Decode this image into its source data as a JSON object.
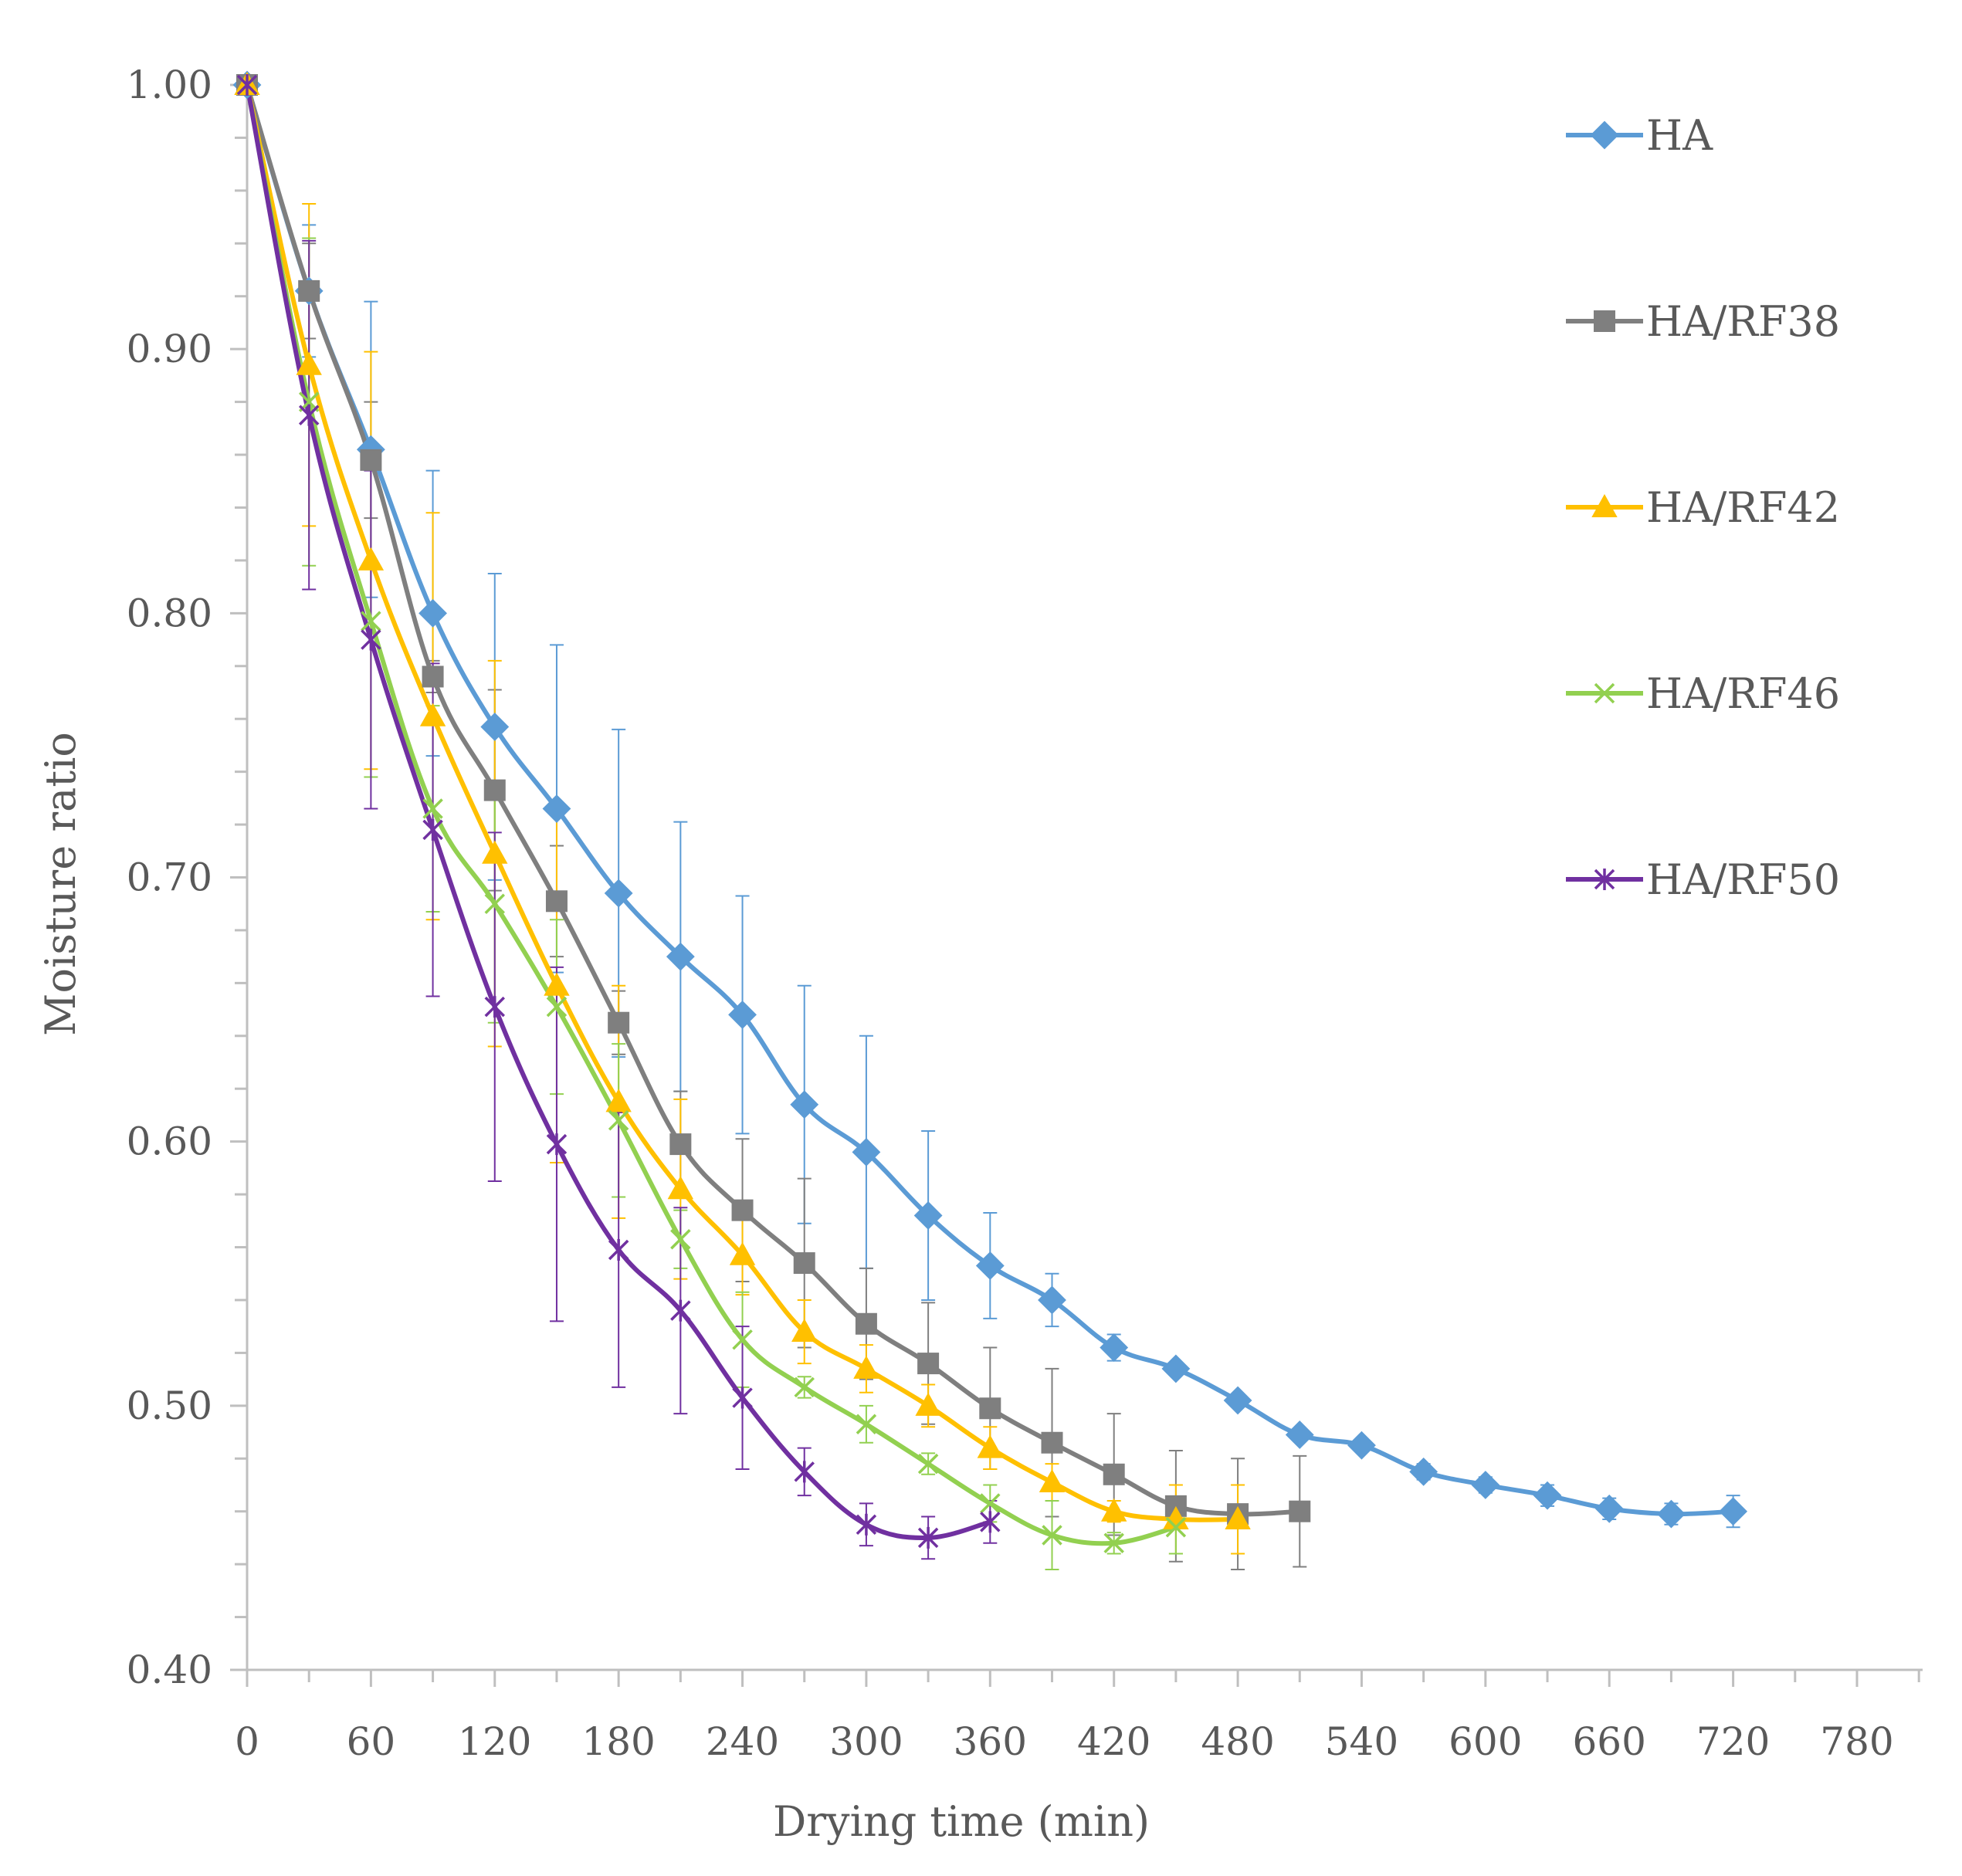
{
  "chart_data": {
    "type": "line",
    "title": "",
    "xlabel": "Drying time (min)",
    "ylabel": "Moisture ratio",
    "xlim": [
      0,
      780
    ],
    "ylim": [
      0.4,
      1.0
    ],
    "x_ticks": [
      0,
      60,
      120,
      180,
      240,
      300,
      360,
      420,
      480,
      540,
      600,
      660,
      720,
      780
    ],
    "x_tick_labels": [
      "0",
      "60",
      "120",
      "180",
      "240",
      "300",
      "360",
      "420",
      "480",
      "540",
      "600",
      "660",
      "720",
      "780"
    ],
    "y_ticks": [
      0.4,
      0.5,
      0.6,
      0.7,
      0.8,
      0.9,
      1.0
    ],
    "y_tick_labels": [
      "0.40",
      "0.50",
      "0.60",
      "0.70",
      "0.80",
      "0.90",
      "1.00"
    ],
    "grid": false,
    "legend_position": "top-right",
    "series": [
      {
        "name": "HA",
        "color": "#5B9BD5",
        "marker": "diamond",
        "x": [
          0,
          30,
          60,
          90,
          120,
          150,
          180,
          210,
          240,
          270,
          300,
          330,
          360,
          390,
          420,
          450,
          480,
          510,
          540,
          570,
          600,
          630,
          660,
          690,
          720
        ],
        "y": [
          1.0,
          0.922,
          0.862,
          0.8,
          0.757,
          0.726,
          0.694,
          0.67,
          0.648,
          0.614,
          0.596,
          0.572,
          0.553,
          0.54,
          0.522,
          0.514,
          0.502,
          0.489,
          0.485,
          0.475,
          0.47,
          0.466,
          0.461,
          0.459,
          0.46
        ],
        "err": [
          0,
          0.025,
          0.056,
          0.054,
          0.058,
          0.062,
          0.062,
          0.051,
          0.045,
          0.045,
          0.044,
          0.032,
          0.02,
          0.01,
          0.005,
          0.002,
          0.002,
          0.002,
          0.002,
          0.003,
          0.003,
          0.004,
          0.004,
          0.004,
          0.006
        ]
      },
      {
        "name": "HA/RF38",
        "color": "#7F7F7F",
        "marker": "square",
        "x": [
          0,
          30,
          60,
          90,
          120,
          150,
          180,
          210,
          240,
          270,
          300,
          330,
          360,
          390,
          420,
          450,
          480,
          510
        ],
        "y": [
          1.0,
          0.922,
          0.858,
          0.776,
          0.733,
          0.691,
          0.645,
          0.599,
          0.574,
          0.554,
          0.531,
          0.516,
          0.499,
          0.486,
          0.474,
          0.462,
          0.459,
          0.46
        ],
        "err": [
          0,
          0.018,
          0.022,
          0.006,
          0.038,
          0.021,
          0.012,
          0.02,
          0.027,
          0.032,
          0.021,
          0.023,
          0.023,
          0.028,
          0.023,
          0.021,
          0.021,
          0.021
        ]
      },
      {
        "name": "HA/RF42",
        "color": "#FFC000",
        "marker": "triangle",
        "x": [
          0,
          30,
          60,
          90,
          120,
          150,
          180,
          210,
          240,
          270,
          300,
          330,
          360,
          390,
          420,
          450,
          480
        ],
        "y": [
          1.0,
          0.894,
          0.82,
          0.761,
          0.709,
          0.659,
          0.615,
          0.582,
          0.557,
          0.528,
          0.514,
          0.5,
          0.484,
          0.471,
          0.46,
          0.457,
          0.457
        ],
        "err": [
          0,
          0.061,
          0.079,
          0.077,
          0.073,
          0.067,
          0.044,
          0.034,
          0.015,
          0.012,
          0.009,
          0.008,
          0.008,
          0.007,
          0.004,
          0.013,
          0.013
        ]
      },
      {
        "name": "HA/RF46",
        "color": "#92D050",
        "marker": "x",
        "x": [
          0,
          30,
          60,
          90,
          120,
          150,
          180,
          210,
          240,
          270,
          300,
          330,
          360,
          390,
          420,
          450
        ],
        "y": [
          1.0,
          0.88,
          0.797,
          0.726,
          0.69,
          0.651,
          0.608,
          0.563,
          0.525,
          0.507,
          0.493,
          0.478,
          0.463,
          0.451,
          0.448,
          0.454
        ],
        "err": [
          0,
          0.062,
          0.059,
          0.039,
          0.045,
          0.033,
          0.029,
          0.011,
          0.018,
          0.004,
          0.007,
          0.004,
          0.007,
          0.013,
          0.004,
          0.01
        ]
      },
      {
        "name": "HA/RF50",
        "color": "#7030A0",
        "marker": "star",
        "x": [
          0,
          30,
          60,
          90,
          120,
          150,
          180,
          210,
          240,
          270,
          300,
          330,
          360
        ],
        "y": [
          1.0,
          0.875,
          0.79,
          0.718,
          0.651,
          0.599,
          0.559,
          0.536,
          0.503,
          0.475,
          0.455,
          0.45,
          0.456
        ],
        "err": [
          0,
          0.066,
          0.064,
          0.063,
          0.066,
          0.067,
          0.052,
          0.039,
          0.027,
          0.009,
          0.008,
          0.008,
          0.008
        ]
      }
    ]
  }
}
